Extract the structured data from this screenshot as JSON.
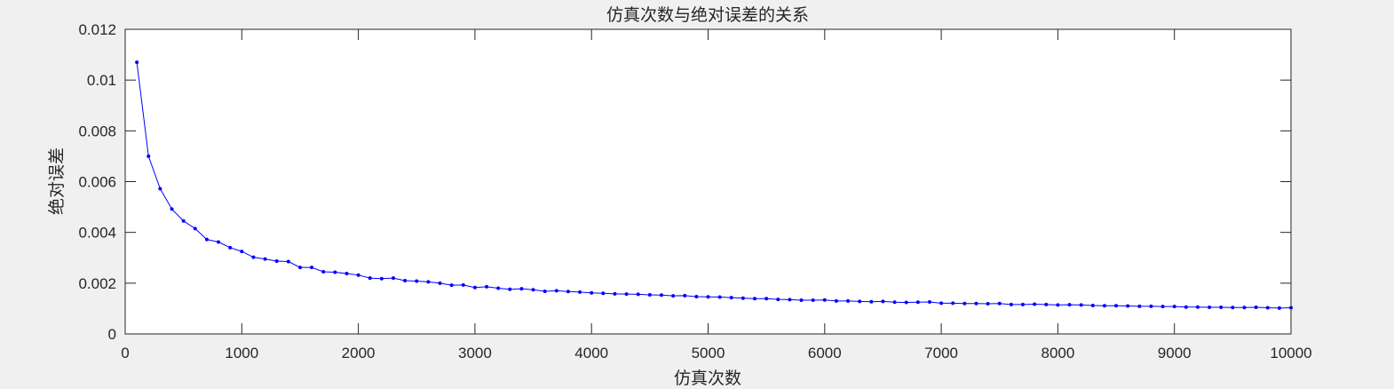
{
  "chart_data": {
    "type": "line",
    "title": "仿真次数与绝对误差的关系",
    "xlabel": "仿真次数",
    "ylabel": "绝对误差",
    "xlim": [
      0,
      10000
    ],
    "ylim": [
      0,
      0.012
    ],
    "x_ticks": [
      "0",
      "1000",
      "2000",
      "3000",
      "4000",
      "5000",
      "6000",
      "7000",
      "8000",
      "9000",
      "10000"
    ],
    "y_ticks": [
      "0",
      "0.002",
      "0.004",
      "0.006",
      "0.008",
      "0.01",
      "0.012"
    ],
    "grid": false,
    "line_color": "#0000ff",
    "marker": "point",
    "series": [
      {
        "x": [
          100,
          200,
          300,
          400,
          500,
          600,
          700,
          800,
          900,
          1000,
          1100,
          1200,
          1300,
          1400,
          1500,
          1600,
          1700,
          1800,
          1900,
          2000,
          2100,
          2200,
          2300,
          2400,
          2500,
          2600,
          2700,
          2800,
          2900,
          3000,
          3100,
          3200,
          3300,
          3400,
          3500,
          3600,
          3700,
          3800,
          3900,
          4000,
          4100,
          4200,
          4300,
          4400,
          4500,
          4600,
          4700,
          4800,
          4900,
          5000,
          5100,
          5200,
          5300,
          5400,
          5500,
          5600,
          5700,
          5800,
          5900,
          6000,
          6100,
          6200,
          6300,
          6400,
          6500,
          6600,
          6700,
          6800,
          6900,
          7000,
          7100,
          7200,
          7300,
          7400,
          7500,
          7600,
          7700,
          7800,
          7900,
          8000,
          8100,
          8200,
          8300,
          8400,
          8500,
          8600,
          8700,
          8800,
          8900,
          9000,
          9100,
          9200,
          9300,
          9400,
          9500,
          9600,
          9700,
          9800,
          9900,
          10000
        ],
        "values": [
          0.0107,
          0.007,
          0.00572,
          0.00492,
          0.00445,
          0.00415,
          0.00372,
          0.00362,
          0.0034,
          0.00325,
          0.00302,
          0.00295,
          0.00287,
          0.00285,
          0.00262,
          0.00262,
          0.00245,
          0.00243,
          0.00238,
          0.00232,
          0.0022,
          0.00218,
          0.0022,
          0.0021,
          0.00208,
          0.00205,
          0.002,
          0.00192,
          0.00193,
          0.00183,
          0.00186,
          0.0018,
          0.00176,
          0.00178,
          0.00174,
          0.00168,
          0.0017,
          0.00167,
          0.00165,
          0.00162,
          0.0016,
          0.00158,
          0.00157,
          0.00156,
          0.00154,
          0.00153,
          0.0015,
          0.00151,
          0.00147,
          0.00146,
          0.00145,
          0.00143,
          0.00141,
          0.00139,
          0.00139,
          0.00136,
          0.00135,
          0.00133,
          0.00133,
          0.00134,
          0.0013,
          0.0013,
          0.00128,
          0.00127,
          0.00128,
          0.00125,
          0.00124,
          0.00125,
          0.00126,
          0.00121,
          0.00121,
          0.0012,
          0.0012,
          0.00119,
          0.0012,
          0.00116,
          0.00116,
          0.00117,
          0.00116,
          0.00114,
          0.00115,
          0.00114,
          0.00112,
          0.00111,
          0.00111,
          0.0011,
          0.00109,
          0.00109,
          0.00108,
          0.00108,
          0.00106,
          0.00106,
          0.00105,
          0.00105,
          0.00104,
          0.00104,
          0.00105,
          0.00103,
          0.00102,
          0.00103
        ]
      }
    ]
  }
}
